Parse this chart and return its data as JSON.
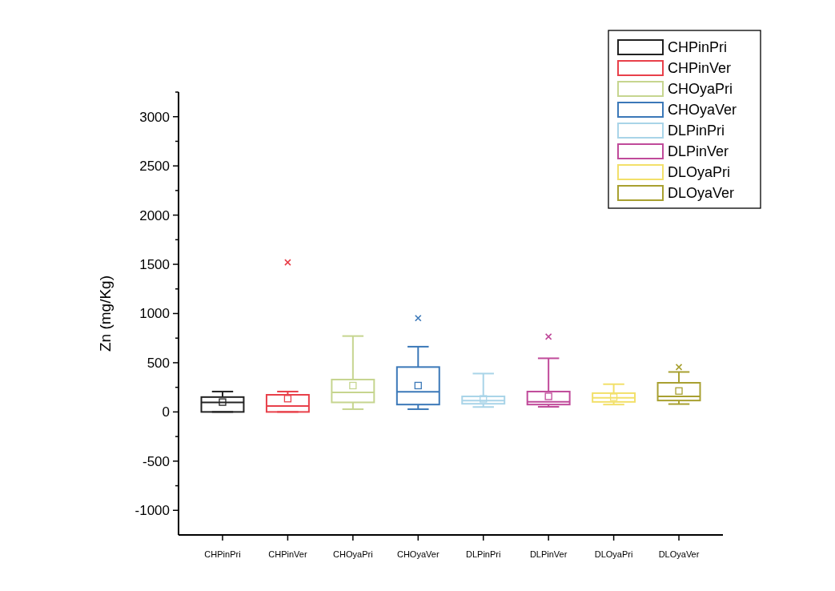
{
  "chart_data": {
    "type": "box",
    "ylabel": "Zn (mg/Kg)",
    "categories": [
      "CHPinPri",
      "CHPinVer",
      "CHOyaPri",
      "CHOyaVer",
      "DLPinPri",
      "DLPinVer",
      "DLOyaPri",
      "DLOyaVer"
    ],
    "series": [
      {
        "name": "CHPinPri",
        "color": "#222222",
        "boxes": [
          {
            "low": 0,
            "q1": 0,
            "median": 97,
            "q3": 151,
            "high": 207,
            "mean": 100
          },
          null,
          null,
          null,
          null,
          null,
          null,
          null
        ]
      },
      {
        "name": "CHPinVer",
        "color": "#e8404a",
        "boxes": [
          null,
          {
            "low": 0,
            "q1": 0,
            "median": 61,
            "q3": 174,
            "high": 207,
            "mean": 135,
            "outliers": [
              1520
            ]
          },
          null,
          null,
          null,
          null,
          null,
          null
        ]
      },
      {
        "name": "CHOyaPri",
        "color": "#c6d58f",
        "boxes": [
          null,
          null,
          {
            "low": 28,
            "q1": 97,
            "median": 199,
            "q3": 329,
            "high": 771,
            "mean": 268
          },
          null,
          null,
          null,
          null,
          null
        ]
      },
      {
        "name": "CHOyaVer",
        "color": "#3b78b8",
        "boxes": [
          null,
          null,
          null,
          {
            "low": 28,
            "q1": 75,
            "median": 205,
            "q3": 456,
            "high": 663,
            "mean": 268,
            "outliers": [
              953
            ]
          },
          null,
          null,
          null,
          null
        ]
      },
      {
        "name": "DLPinPri",
        "color": "#a9d4e8",
        "boxes": [
          null,
          null,
          null,
          null,
          {
            "low": 50,
            "q1": 83,
            "median": 116,
            "q3": 158,
            "high": 390,
            "mean": 133
          },
          null,
          null,
          null
        ]
      },
      {
        "name": "DLPinVer",
        "color": "#c04a9a",
        "boxes": [
          null,
          null,
          null,
          null,
          null,
          {
            "low": 52,
            "q1": 75,
            "median": 102,
            "q3": 207,
            "high": 545,
            "mean": 158,
            "outliers": [
              765
            ]
          },
          null,
          null
        ]
      },
      {
        "name": "DLOyaPri",
        "color": "#f2e06a",
        "boxes": [
          null,
          null,
          null,
          null,
          null,
          null,
          {
            "low": 75,
            "q1": 102,
            "median": 144,
            "q3": 191,
            "high": 282,
            "mean": 150
          },
          null
        ]
      },
      {
        "name": "DLOyaVer",
        "color": "#a8a030",
        "boxes": [
          null,
          null,
          null,
          null,
          null,
          null,
          null,
          {
            "low": 80,
            "q1": 116,
            "median": 158,
            "q3": 296,
            "high": 406,
            "mean": 213,
            "outliers": [
              456
            ]
          }
        ]
      }
    ],
    "ylim": [
      -1250,
      3250
    ],
    "yticks": [
      -1000,
      {
        "value": -750,
        "label": null
      },
      -500,
      {
        "value": -250,
        "label": null
      },
      0,
      {
        "value": 250,
        "label": null
      },
      500,
      {
        "value": 750,
        "label": null
      },
      1000,
      {
        "value": 1250,
        "label": null
      },
      1500,
      {
        "value": 1750,
        "label": null
      },
      2000,
      {
        "value": 2250,
        "label": null
      },
      2500,
      {
        "value": 2750,
        "label": null
      },
      3000,
      {
        "value": 3250,
        "label": null
      }
    ],
    "grid": false,
    "legend": "top right"
  }
}
